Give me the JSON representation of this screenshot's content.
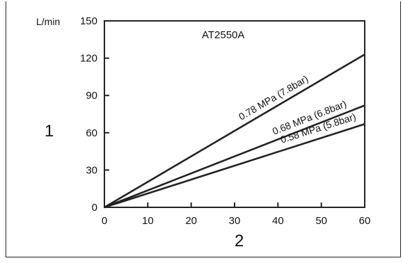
{
  "chart_data": {
    "type": "line",
    "title": "AT2550A",
    "xlabel": "2",
    "ylabel": "1",
    "y_unit": "L/min",
    "xlim": [
      0,
      60
    ],
    "ylim": [
      0,
      150
    ],
    "x_ticks": [
      "0",
      "10",
      "20",
      "30",
      "40",
      "50",
      "60"
    ],
    "y_ticks": [
      "0",
      "30",
      "60",
      "90",
      "120",
      "150"
    ],
    "grid": false,
    "series": [
      {
        "name": "0.78 MPa (7.8bar)",
        "x": [
          0,
          60
        ],
        "y": [
          0,
          123
        ]
      },
      {
        "name": "0.68 MPa (6.8bar)",
        "x": [
          0,
          60
        ],
        "y": [
          0,
          82
        ]
      },
      {
        "name": "0.58 MPa (5.8bar)",
        "x": [
          0,
          60
        ],
        "y": [
          0,
          67
        ]
      }
    ],
    "colors": {
      "line": "#222222",
      "axis": "#222222"
    }
  }
}
